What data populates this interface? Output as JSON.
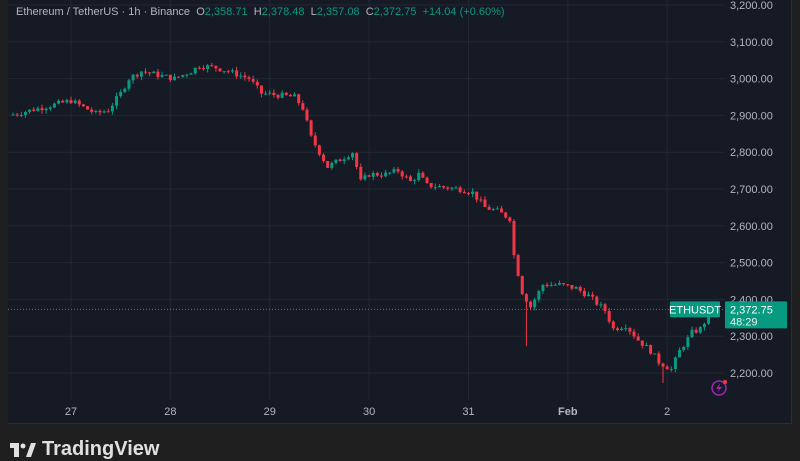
{
  "legend": {
    "symbol": "Ethereum / TetherUS · 1h · Binance",
    "open_label": "O",
    "open": "2,358.71",
    "high_label": "H",
    "high": "2,378.48",
    "low_label": "L",
    "low": "2,357.08",
    "close_label": "C",
    "close": "2,372.75",
    "change": "+14.04 (+0.60%)"
  },
  "price_tag": {
    "symbol": "ETHUSDT",
    "price": "2,372.75",
    "countdown": "48:29"
  },
  "brand": "TradingView",
  "colors": {
    "up": "#089981",
    "down": "#f23645",
    "background": "#161a25",
    "grid": "#232733"
  },
  "chart_data": {
    "type": "candlestick",
    "interval": "1h",
    "y_ticks": [
      "2,200.00",
      "2,300.00",
      "2,400.00",
      "2,500.00",
      "2,600.00",
      "2,700.00",
      "2,800.00",
      "2,900.00",
      "3,000.00",
      "3,100.00",
      "3,200.00"
    ],
    "ylim": [
      2200,
      3200
    ],
    "x_ticks": [
      "27",
      "28",
      "29",
      "30",
      "31",
      "Feb",
      "2"
    ],
    "grid": true,
    "last_price": 2372.75,
    "price_path": [
      [
        "01-26 09:00",
        2900
      ],
      [
        "01-27 00:00",
        2940
      ],
      [
        "01-27 06:00",
        2905
      ],
      [
        "01-27 09:00",
        2915
      ],
      [
        "01-27 12:00",
        2960
      ],
      [
        "01-27 14:00",
        3000
      ],
      [
        "01-27 17:00",
        3020
      ],
      [
        "01-27 21:00",
        3010
      ],
      [
        "01-28 01:00",
        3000
      ],
      [
        "01-28 05:00",
        3020
      ],
      [
        "01-28 07:00",
        3035
      ],
      [
        "01-28 11:00",
        3030
      ],
      [
        "01-28 14:00",
        3020
      ],
      [
        "01-28 19:00",
        3000
      ],
      [
        "01-28 22:00",
        2960
      ],
      [
        "01-29 02:00",
        2955
      ],
      [
        "01-29 06:00",
        2950
      ],
      [
        "01-29 08:00",
        2920
      ],
      [
        "01-29 10:00",
        2840
      ],
      [
        "01-29 12:00",
        2800
      ],
      [
        "01-29 14:00",
        2760
      ],
      [
        "01-29 17:00",
        2780
      ],
      [
        "01-29 20:00",
        2800
      ],
      [
        "01-29 22:00",
        2720
      ],
      [
        "01-30 00:00",
        2740
      ],
      [
        "01-30 04:00",
        2740
      ],
      [
        "01-30 07:00",
        2750
      ],
      [
        "01-30 10:00",
        2720
      ],
      [
        "01-30 12:00",
        2740
      ],
      [
        "01-30 14:00",
        2710
      ],
      [
        "01-30 22:00",
        2700
      ],
      [
        "01-31 01:00",
        2690
      ],
      [
        "01-31 04:00",
        2650
      ],
      [
        "01-31 07:00",
        2640
      ],
      [
        "01-31 10:00",
        2620
      ],
      [
        "01-31 11:00",
        2520
      ],
      [
        "01-31 13:00",
        2420
      ],
      [
        "01-31 15:00",
        2380
      ],
      [
        "01-31 18:00",
        2440
      ],
      [
        "01-31 22:00",
        2440
      ],
      [
        "02-01 02:00",
        2430
      ],
      [
        "02-01 05:00",
        2410
      ],
      [
        "02-01 09:00",
        2370
      ],
      [
        "02-01 11:00",
        2320
      ],
      [
        "02-01 14:00",
        2330
      ],
      [
        "02-01 17:00",
        2290
      ],
      [
        "02-01 20:00",
        2260
      ],
      [
        "02-01 22:00",
        2230
      ],
      [
        "02-02 01:00",
        2210
      ],
      [
        "02-02 03:00",
        2260
      ],
      [
        "02-02 06:00",
        2310
      ],
      [
        "02-02 08:00",
        2320
      ],
      [
        "02-02 11:00",
        2372.75
      ]
    ]
  }
}
